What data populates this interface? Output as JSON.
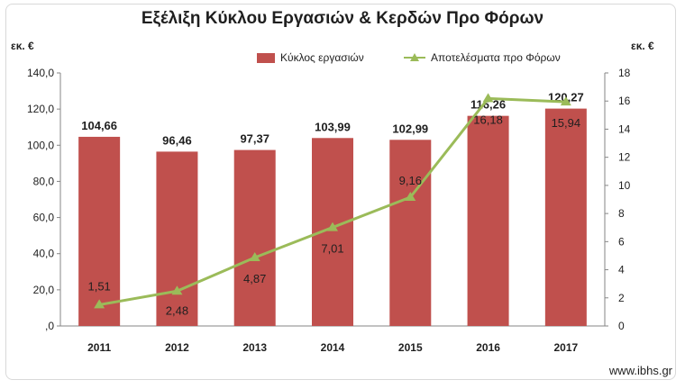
{
  "chart_data": {
    "type": "bar",
    "title": "Εξέλιξη Κύκλου Εργασιών & Κερδών Προ Φόρων",
    "left_unit": "εκ. €",
    "right_unit": "εκ. €",
    "categories": [
      "2011",
      "2012",
      "2013",
      "2014",
      "2015",
      "2016",
      "2017"
    ],
    "series": [
      {
        "name": "Κύκλος εργασιών",
        "type": "bar",
        "axis": "left",
        "color": "#c0504d",
        "values": [
          104.66,
          96.46,
          97.37,
          103.99,
          102.99,
          116.26,
          120.27
        ],
        "labels": [
          "104,66",
          "96,46",
          "97,37",
          "103,99",
          "102,99",
          "116,26",
          "120,27"
        ]
      },
      {
        "name": "Αποτελέσματα προ Φόρων",
        "type": "line",
        "axis": "right",
        "color": "#9bbb59",
        "values": [
          1.51,
          2.48,
          4.87,
          7.01,
          9.16,
          16.18,
          15.94
        ],
        "labels": [
          "1,51",
          "2,48",
          "4,87",
          "7,01",
          "9,16",
          "16,18",
          "15,94"
        ]
      }
    ],
    "y_left": {
      "ylim": [
        0,
        140
      ],
      "ticks": [
        ",0",
        "20,0",
        "40,0",
        "60,0",
        "80,0",
        "100,0",
        "120,0",
        "140,0"
      ]
    },
    "y_right": {
      "ylim": [
        0,
        18
      ],
      "ticks": [
        "0",
        "2",
        "4",
        "6",
        "8",
        "10",
        "12",
        "14",
        "16",
        "18"
      ]
    },
    "grid": false,
    "legend_position": "top-right"
  },
  "source": "www.ibhs.gr"
}
